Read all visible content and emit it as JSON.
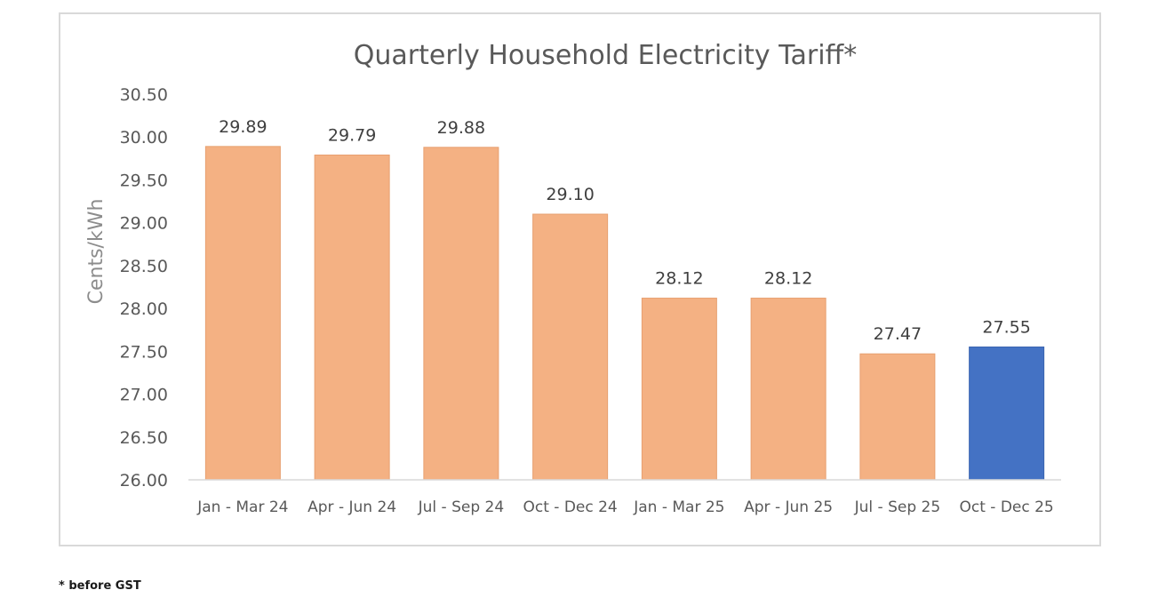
{
  "chart_data": {
    "type": "bar",
    "title": "Quarterly Household Electricity Tariff*",
    "ylabel": "Cents/kWh",
    "xlabel": "",
    "ylim": [
      26.0,
      30.5
    ],
    "yticks": [
      "26.00",
      "26.50",
      "27.00",
      "27.50",
      "28.00",
      "28.50",
      "29.00",
      "29.50",
      "30.00",
      "30.50"
    ],
    "categories": [
      "Jan - Mar 24",
      "Apr - Jun 24",
      "Jul - Sep 24",
      "Oct - Dec 24",
      "Jan - Mar 25",
      "Apr - Jun 25",
      "Jul - Sep 25",
      "Oct - Dec 25"
    ],
    "values": [
      29.89,
      29.79,
      29.88,
      29.1,
      28.12,
      28.12,
      27.47,
      27.55
    ],
    "value_labels": [
      "29.89",
      "29.79",
      "29.88",
      "29.10",
      "28.12",
      "28.12",
      "27.47",
      "27.55"
    ],
    "highlight_index": 7,
    "colors": {
      "bar": "#F4B183",
      "highlight": "#4472C4",
      "text": "#595959",
      "axis": "#d9d9d9"
    },
    "grid": false,
    "legend": "none"
  },
  "footnote": "* before GST"
}
